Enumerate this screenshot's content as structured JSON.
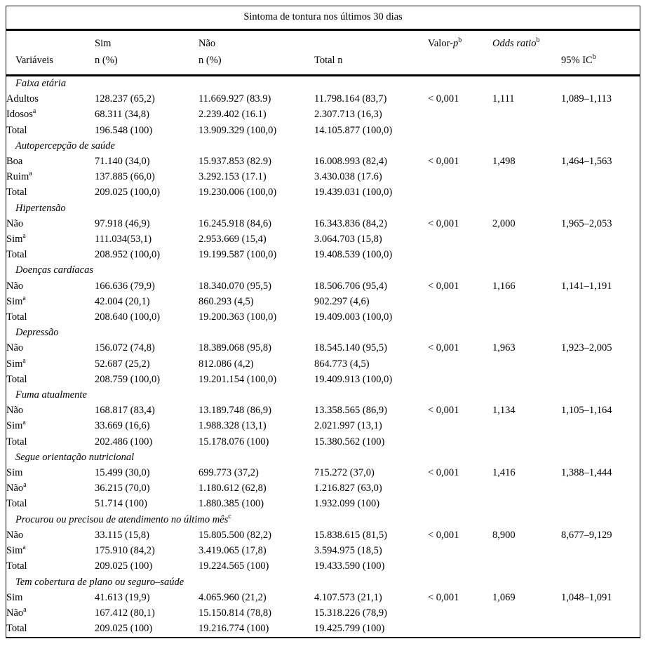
{
  "document": {
    "title": "Sintoma de tontura nos últimos 30 dias",
    "header": {
      "variaveis": "Variáveis",
      "sim": "Sim",
      "nao": "Não",
      "n_pct": "n (%)",
      "total_n": "Total n",
      "valor_p_prefix": "Valor-",
      "valor_p_var": "p",
      "odds_ratio": "Odds ratio",
      "ic": "95% IC",
      "sup_note": "b"
    },
    "colors": {
      "text": "#000000",
      "background": "#ffffff",
      "rule": "#000000"
    },
    "sections": [
      {
        "name": "Faixa etária",
        "sup": "",
        "rows": [
          {
            "label": "Adultos",
            "sup": "",
            "sim": "128.237 (65,2)",
            "nao": "11.669.927 (83.9)",
            "total": "11.798.164 (83,7)",
            "p": "< 0,001",
            "or": "1,111",
            "ic": "1,089–1,113"
          },
          {
            "label": "Idosos",
            "sup": "a",
            "sim": "68.311 (34,8)",
            "nao": "2.239.402 (16.1)",
            "total": "2.307.713 (16,3)",
            "p": "",
            "or": "",
            "ic": ""
          },
          {
            "label": "Total",
            "sup": "",
            "sim": "196.548 (100)",
            "nao": "13.909.329 (100,0)",
            "total": "14.105.877 (100,0)",
            "p": "",
            "or": "",
            "ic": ""
          }
        ]
      },
      {
        "name": "Autopercepção de saúde",
        "sup": "",
        "rows": [
          {
            "label": "Boa",
            "sup": "",
            "sim": "71.140 (34,0)",
            "nao": "15.937.853 (82.9)",
            "total": "16.008.993 (82,4)",
            "p": "< 0,001",
            "or": "1,498",
            "ic": "1,464–1,563"
          },
          {
            "label": "Ruim",
            "sup": "a",
            "sim": "137.885 (66,0)",
            "nao": "3.292.153 (17.1)",
            "total": "3.430.038 (17.6)",
            "p": "",
            "or": "",
            "ic": ""
          },
          {
            "label": "Total",
            "sup": "",
            "sim": "209.025 (100,0)",
            "nao": "19.230.006 (100,0)",
            "total": "19.439.031 (100,0)",
            "p": "",
            "or": "",
            "ic": ""
          }
        ]
      },
      {
        "name": "Hipertensão",
        "sup": "",
        "rows": [
          {
            "label": "Não",
            "sup": "",
            "sim": "97.918 (46,9)",
            "nao": "16.245.918 (84,6)",
            "total": "16.343.836 (84,2)",
            "p": "< 0,001",
            "or": "2,000",
            "ic": "1,965–2,053"
          },
          {
            "label": "Sim",
            "sup": "a",
            "sim": "111.034(53,1)",
            "nao": "2.953.669 (15,4)",
            "total": "3.064.703 (15,8)",
            "p": "",
            "or": "",
            "ic": ""
          },
          {
            "label": "Total",
            "sup": "",
            "sim": "208.952 (100,0)",
            "nao": "19.199.587 (100,0)",
            "total": "19.408.539 (100,0)",
            "p": "",
            "or": "",
            "ic": ""
          }
        ]
      },
      {
        "name": "Doenças cardíacas",
        "sup": "",
        "rows": [
          {
            "label": "Não",
            "sup": "",
            "sim": "166.636 (79,9)",
            "nao": "18.340.070 (95,5)",
            "total": "18.506.706 (95,4)",
            "p": "< 0,001",
            "or": "1,166",
            "ic": "1,141–1,191"
          },
          {
            "label": "Sim",
            "sup": "a",
            "sim": "42.004 (20,1)",
            "nao": "860.293 (4,5)",
            "total": "902.297 (4,6)",
            "p": "",
            "or": "",
            "ic": ""
          },
          {
            "label": "Total",
            "sup": "",
            "sim": "208.640 (100,0)",
            "nao": "19.200.363 (100,0)",
            "total": "19.409.003 (100,0)",
            "p": "",
            "or": "",
            "ic": ""
          }
        ]
      },
      {
        "name": "Depressão",
        "sup": "",
        "rows": [
          {
            "label": "Não",
            "sup": "",
            "sim": "156.072 (74,8)",
            "nao": "18.389.068 (95,8)",
            "total": "18.545.140 (95,5)",
            "p": "< 0,001",
            "or": "1,963",
            "ic": "1,923–2,005"
          },
          {
            "label": "Sim",
            "sup": "a",
            "sim": "52.687 (25,2)",
            "nao": "812.086 (4,2)",
            "total": "864.773 (4,5)",
            "p": "",
            "or": "",
            "ic": ""
          },
          {
            "label": "Total",
            "sup": "",
            "sim": "208.759 (100,0)",
            "nao": "19.201.154 (100,0)",
            "total": "19.409.913 (100,0)",
            "p": "",
            "or": "",
            "ic": ""
          }
        ]
      },
      {
        "name": "Fuma atualmente",
        "sup": "",
        "rows": [
          {
            "label": "Não",
            "sup": "",
            "sim": "168.817 (83,4)",
            "nao": "13.189.748 (86,9)",
            "total": "13.358.565 (86,9)",
            "p": "< 0,001",
            "or": "1,134",
            "ic": "1,105–1,164"
          },
          {
            "label": "Sim",
            "sup": "a",
            "sim": "33.669 (16,6)",
            "nao": "1.988.328 (13,1)",
            "total": "2.021.997 (13,1)",
            "p": "",
            "or": "",
            "ic": ""
          },
          {
            "label": "Total",
            "sup": "",
            "sim": "202.486 (100)",
            "nao": "15.178.076 (100)",
            "total": "15.380.562 (100)",
            "p": "",
            "or": "",
            "ic": ""
          }
        ]
      },
      {
        "name": "Segue orientação nutricional",
        "sup": "",
        "rows": [
          {
            "label": "Sim",
            "sup": "",
            "sim": "15.499 (30,0)",
            "nao": "699.773 (37,2)",
            "total": "715.272 (37,0)",
            "p": "< 0,001",
            "or": "1,416",
            "ic": "1,388–1,444"
          },
          {
            "label": "Não",
            "sup": "a",
            "sim": "36.215 (70,0)",
            "nao": "1.180.612 (62,8)",
            "total": "1.216.827 (63,0)",
            "p": "",
            "or": "",
            "ic": ""
          },
          {
            "label": "Total",
            "sup": "",
            "sim": "51.714 (100)",
            "nao": "1.880.385 (100)",
            "total": "1.932.099 (100)",
            "p": "",
            "or": "",
            "ic": ""
          }
        ]
      },
      {
        "name": "Procurou ou precisou de atendimento no último mês",
        "sup": "c",
        "rows": [
          {
            "label": "Não",
            "sup": "",
            "sim": "33.115 (15,8)",
            "nao": "15.805.500 (82,2)",
            "total": "15.838.615 (81,5)",
            "p": "< 0,001",
            "or": "8,900",
            "ic": "8,677–9,129"
          },
          {
            "label": "Sim",
            "sup": "a",
            "sim": "175.910 (84,2)",
            "nao": "3.419.065 (17,8)",
            "total": "3.594.975 (18,5)",
            "p": "",
            "or": "",
            "ic": ""
          },
          {
            "label": "Total",
            "sup": "",
            "sim": "209.025 (100)",
            "nao": "19.224.565 (100)",
            "total": "19.433.590 (100)",
            "p": "",
            "or": "",
            "ic": ""
          }
        ]
      },
      {
        "name": "Tem cobertura de plano ou seguro–saúde",
        "sup": "",
        "rows": [
          {
            "label": "Sim",
            "sup": "",
            "sim": "41.613 (19,9)",
            "nao": "4.065.960 (21,2)",
            "total": "4.107.573 (21,1)",
            "p": "< 0,001",
            "or": "1,069",
            "ic": "1,048–1,091"
          },
          {
            "label": "Não",
            "sup": "a",
            "sim": "167.412 (80,1)",
            "nao": "15.150.814 (78,8)",
            "total": "15.318.226 (78,9)",
            "p": "",
            "or": "",
            "ic": ""
          },
          {
            "label": "Total",
            "sup": "",
            "sim": "209.025 (100)",
            "nao": "19.216.774 (100)",
            "total": "19.425.799 (100)",
            "p": "",
            "or": "",
            "ic": ""
          }
        ]
      }
    ]
  }
}
